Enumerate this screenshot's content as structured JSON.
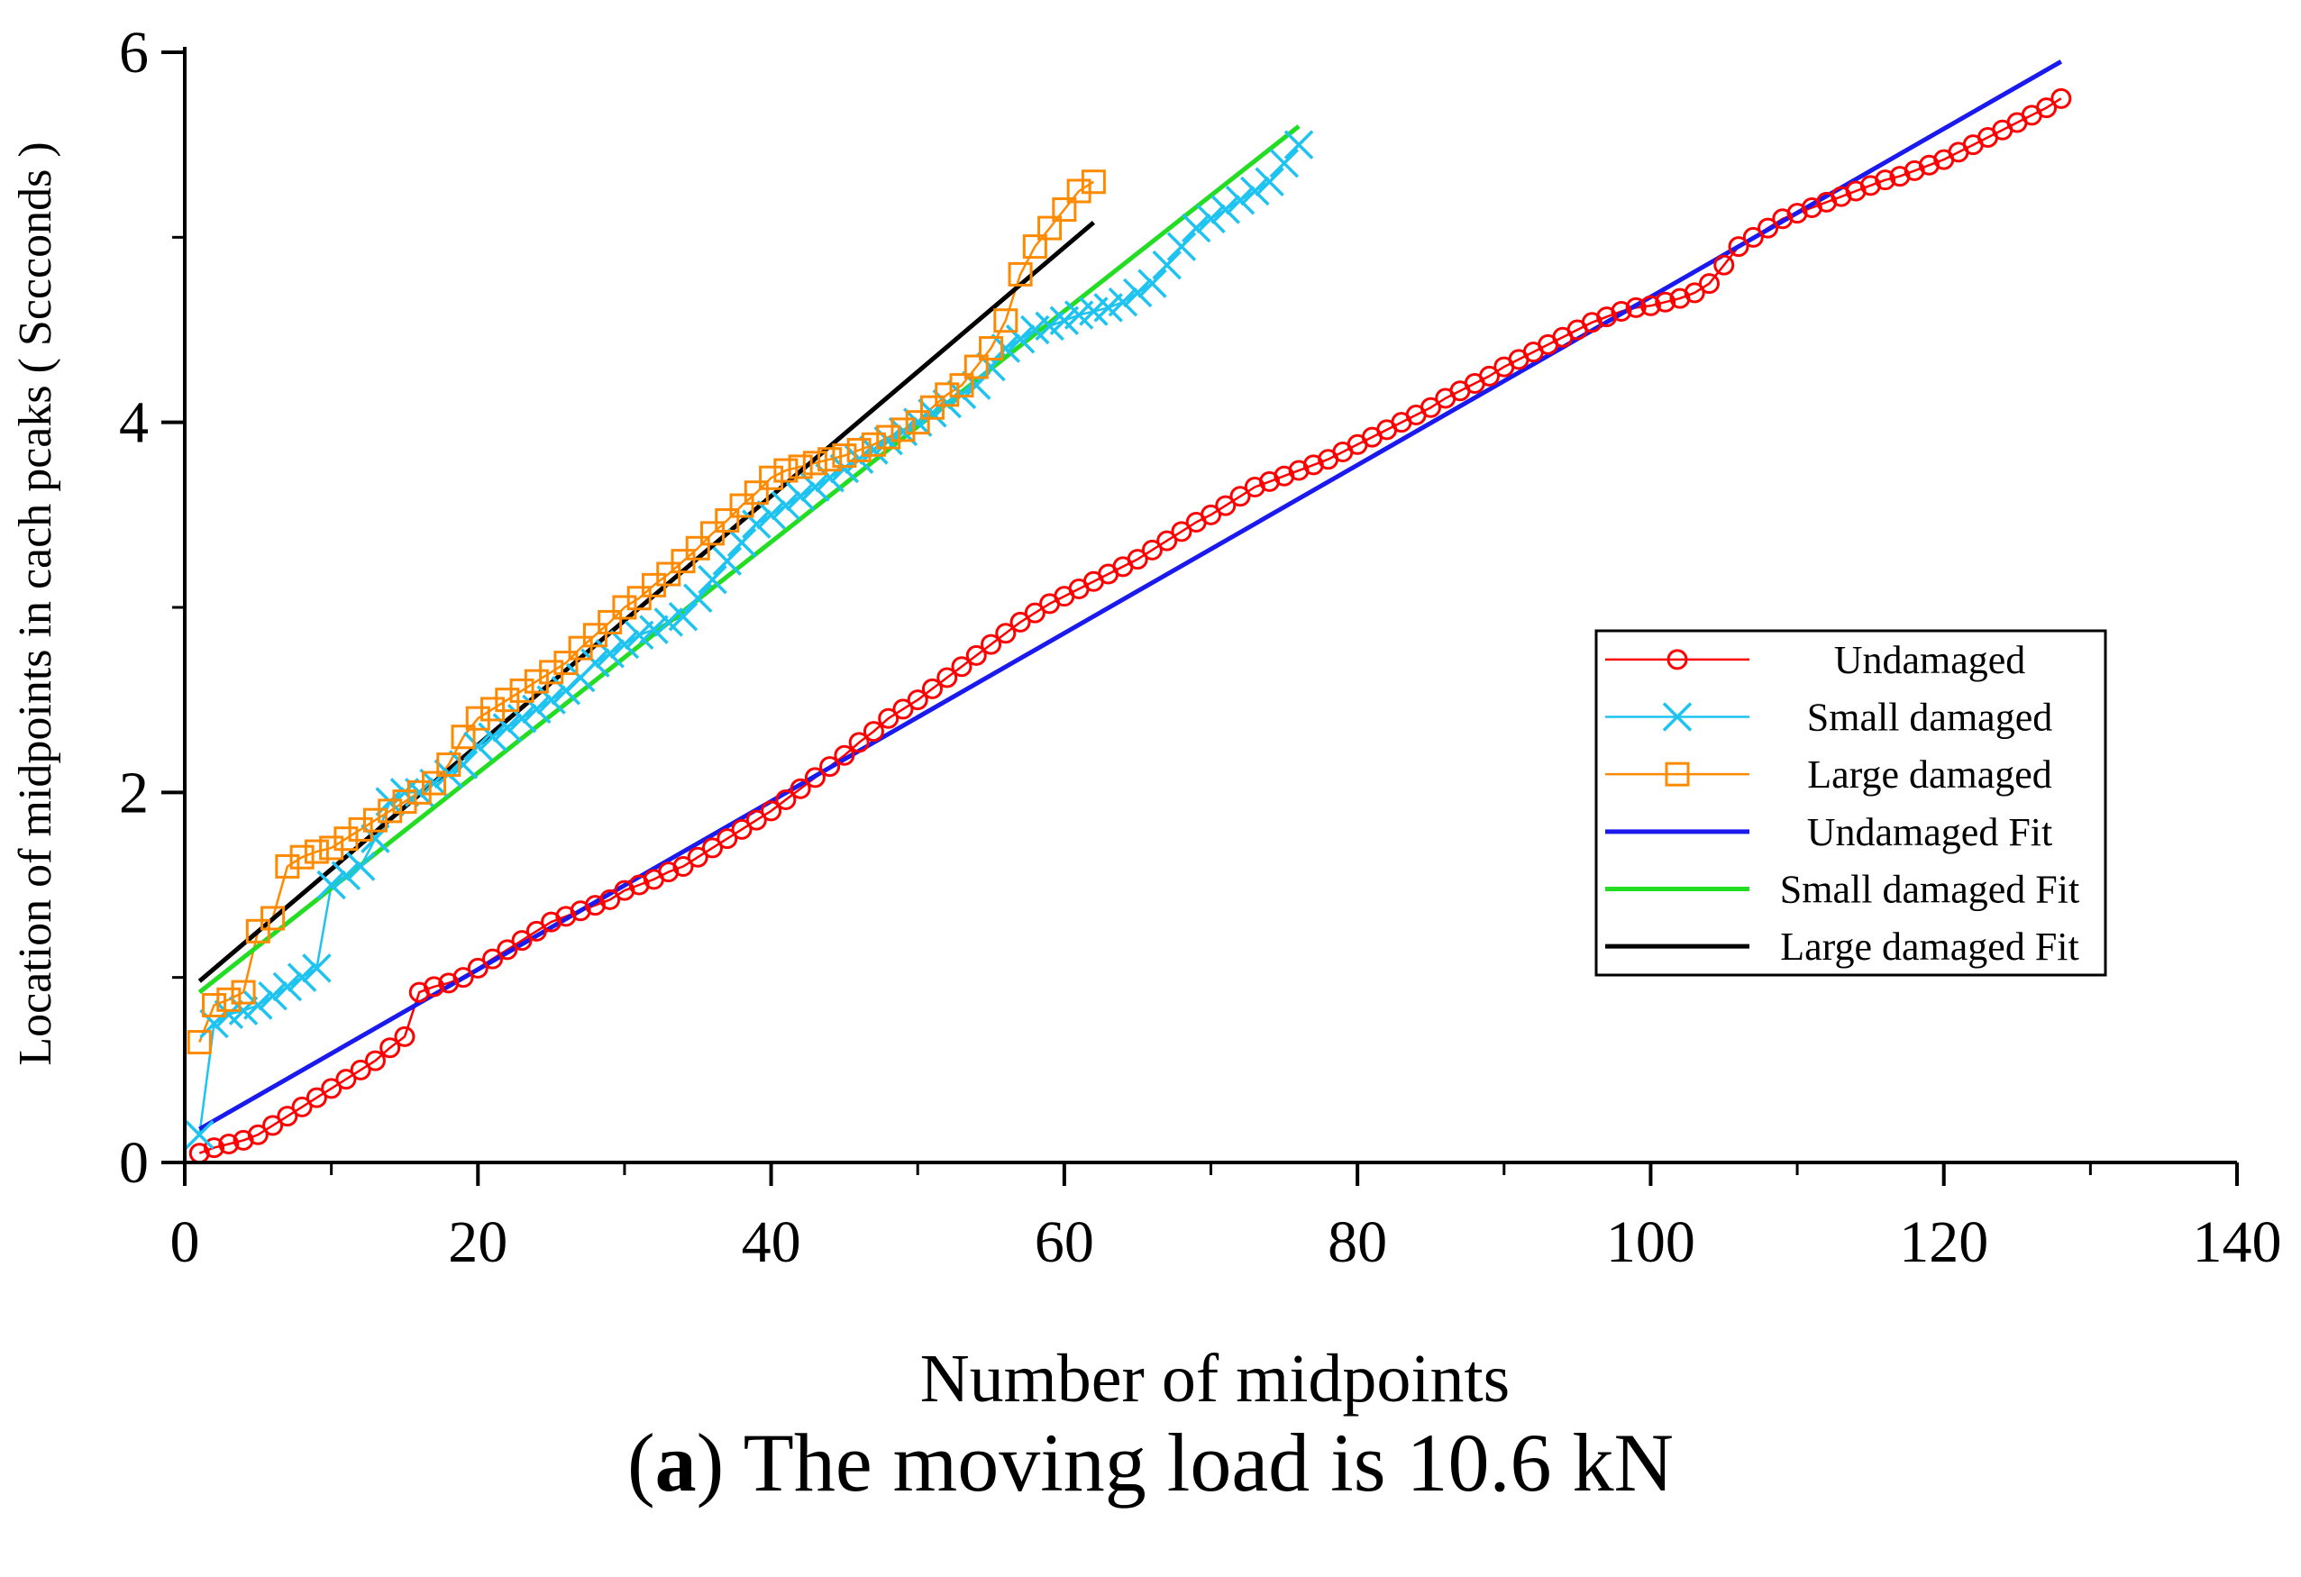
{
  "caption": {
    "prefix_open": "(",
    "letter": "a",
    "suffix": ") The moving load is 10.6 kN"
  },
  "chart_data": {
    "type": "line",
    "title": "",
    "xlabel": "Number of midpoints",
    "ylabel": "Location of midpoints in cach pcaks ( Sccconds )",
    "xlim": [
      0,
      140
    ],
    "ylim": [
      0,
      6
    ],
    "xticks": [
      0,
      20,
      40,
      60,
      80,
      100,
      120,
      140
    ],
    "yticks": [
      0,
      2,
      4,
      6
    ],
    "legend_position": "right",
    "series": [
      {
        "name": "Undamaged",
        "color": "#ff0000",
        "marker": "circle",
        "x": [
          1,
          2,
          3,
          4,
          5,
          6,
          7,
          8,
          9,
          10,
          11,
          12,
          13,
          14,
          15,
          16,
          17,
          18,
          19,
          20,
          21,
          22,
          23,
          24,
          25,
          26,
          27,
          28,
          29,
          30,
          31,
          32,
          33,
          34,
          35,
          36,
          37,
          38,
          39,
          40,
          41,
          42,
          43,
          44,
          45,
          46,
          47,
          48,
          49,
          50,
          51,
          52,
          53,
          54,
          55,
          56,
          57,
          58,
          59,
          60,
          61,
          62,
          63,
          64,
          65,
          66,
          67,
          68,
          69,
          70,
          71,
          72,
          73,
          74,
          75,
          76,
          77,
          78,
          79,
          80,
          81,
          82,
          83,
          84,
          85,
          86,
          87,
          88,
          89,
          90,
          91,
          92,
          93,
          94,
          95,
          96,
          97,
          98,
          99,
          100,
          101,
          102,
          103,
          104,
          105,
          106,
          107,
          108,
          109,
          110,
          111,
          112,
          113,
          114,
          115,
          116,
          117,
          118,
          119,
          120,
          121,
          122,
          123,
          124,
          125,
          126,
          127,
          128
        ],
        "values": [
          0.05,
          0.08,
          0.1,
          0.12,
          0.15,
          0.2,
          0.25,
          0.3,
          0.35,
          0.4,
          0.45,
          0.5,
          0.55,
          0.62,
          0.68,
          0.92,
          0.95,
          0.97,
          1.0,
          1.05,
          1.1,
          1.15,
          1.2,
          1.25,
          1.3,
          1.33,
          1.36,
          1.39,
          1.42,
          1.47,
          1.5,
          1.53,
          1.57,
          1.6,
          1.65,
          1.7,
          1.75,
          1.8,
          1.85,
          1.9,
          1.96,
          2.02,
          2.08,
          2.14,
          2.2,
          2.27,
          2.33,
          2.4,
          2.45,
          2.5,
          2.56,
          2.62,
          2.68,
          2.74,
          2.8,
          2.86,
          2.92,
          2.97,
          3.02,
          3.06,
          3.1,
          3.14,
          3.18,
          3.22,
          3.26,
          3.31,
          3.36,
          3.41,
          3.46,
          3.5,
          3.55,
          3.6,
          3.65,
          3.68,
          3.71,
          3.74,
          3.77,
          3.8,
          3.84,
          3.88,
          3.92,
          3.96,
          4.0,
          4.04,
          4.08,
          4.13,
          4.17,
          4.21,
          4.25,
          4.3,
          4.34,
          4.38,
          4.42,
          4.46,
          4.5,
          4.54,
          4.57,
          4.6,
          4.62,
          4.63,
          4.65,
          4.67,
          4.7,
          4.75,
          4.85,
          4.95,
          5.0,
          5.05,
          5.1,
          5.13,
          5.16,
          5.19,
          5.22,
          5.25,
          5.28,
          5.31,
          5.33,
          5.36,
          5.39,
          5.42,
          5.46,
          5.5,
          5.54,
          5.58,
          5.62,
          5.66,
          5.7,
          5.75
        ]
      },
      {
        "name": "Small damaged",
        "color": "#1ec3f0",
        "marker": "x",
        "x": [
          1,
          2,
          3,
          4,
          5,
          6,
          7,
          8,
          9,
          10,
          11,
          12,
          13,
          14,
          15,
          16,
          17,
          18,
          19,
          20,
          21,
          22,
          23,
          24,
          25,
          26,
          27,
          28,
          29,
          30,
          31,
          32,
          33,
          34,
          35,
          36,
          37,
          38,
          39,
          40,
          41,
          42,
          43,
          44,
          45,
          46,
          47,
          48,
          49,
          50,
          51,
          52,
          53,
          54,
          55,
          56,
          57,
          58,
          59,
          60,
          61,
          62,
          63,
          64,
          65,
          66,
          67,
          68,
          69,
          70,
          71,
          72,
          73,
          74,
          75,
          76
        ],
        "values": [
          0.15,
          0.75,
          0.8,
          0.82,
          0.85,
          0.9,
          0.95,
          1.0,
          1.05,
          1.5,
          1.55,
          1.6,
          1.75,
          1.95,
          2.0,
          2.0,
          2.05,
          2.1,
          2.15,
          2.25,
          2.3,
          2.35,
          2.4,
          2.45,
          2.5,
          2.55,
          2.62,
          2.7,
          2.75,
          2.8,
          2.85,
          2.88,
          2.92,
          2.95,
          3.05,
          3.15,
          3.25,
          3.35,
          3.45,
          3.5,
          3.55,
          3.6,
          3.65,
          3.7,
          3.75,
          3.8,
          3.85,
          3.9,
          3.95,
          4.0,
          4.05,
          4.1,
          4.15,
          4.2,
          4.3,
          4.4,
          4.45,
          4.5,
          4.52,
          4.55,
          4.58,
          4.6,
          4.62,
          4.65,
          4.7,
          4.75,
          4.85,
          4.95,
          5.05,
          5.1,
          5.15,
          5.2,
          5.25,
          5.3,
          5.4,
          5.5
        ]
      },
      {
        "name": "Large damaged",
        "color": "#ff8a00",
        "marker": "square",
        "x": [
          1,
          2,
          3,
          4,
          5,
          6,
          7,
          8,
          9,
          10,
          11,
          12,
          13,
          14,
          15,
          16,
          17,
          18,
          19,
          20,
          21,
          22,
          23,
          24,
          25,
          26,
          27,
          28,
          29,
          30,
          31,
          32,
          33,
          34,
          35,
          36,
          37,
          38,
          39,
          40,
          41,
          42,
          43,
          44,
          45,
          46,
          47,
          48,
          49,
          50,
          51,
          52,
          53,
          54,
          55,
          56,
          57,
          58,
          59,
          60,
          61,
          62
        ],
        "values": [
          0.65,
          0.85,
          0.88,
          0.92,
          1.25,
          1.32,
          1.6,
          1.65,
          1.68,
          1.7,
          1.75,
          1.8,
          1.85,
          1.9,
          1.95,
          2.0,
          2.05,
          2.15,
          2.3,
          2.4,
          2.45,
          2.5,
          2.55,
          2.6,
          2.65,
          2.7,
          2.78,
          2.85,
          2.92,
          3.0,
          3.05,
          3.12,
          3.18,
          3.25,
          3.32,
          3.4,
          3.47,
          3.55,
          3.62,
          3.7,
          3.74,
          3.76,
          3.78,
          3.8,
          3.82,
          3.85,
          3.88,
          3.92,
          3.96,
          4.0,
          4.08,
          4.15,
          4.2,
          4.3,
          4.4,
          4.55,
          4.8,
          4.95,
          5.05,
          5.15,
          5.25,
          5.3
        ]
      },
      {
        "name": "Undamaged Fit",
        "color": "#1a1aee",
        "marker": "none",
        "x": [
          1,
          128
        ],
        "values": [
          0.18,
          5.95
        ]
      },
      {
        "name": "Small damaged Fit",
        "color": "#22dd22",
        "marker": "none",
        "x": [
          1,
          76
        ],
        "values": [
          0.92,
          5.6
        ]
      },
      {
        "name": "Large damaged Fit",
        "color": "#000000",
        "marker": "none",
        "x": [
          1,
          62
        ],
        "values": [
          0.98,
          5.08
        ]
      }
    ]
  }
}
